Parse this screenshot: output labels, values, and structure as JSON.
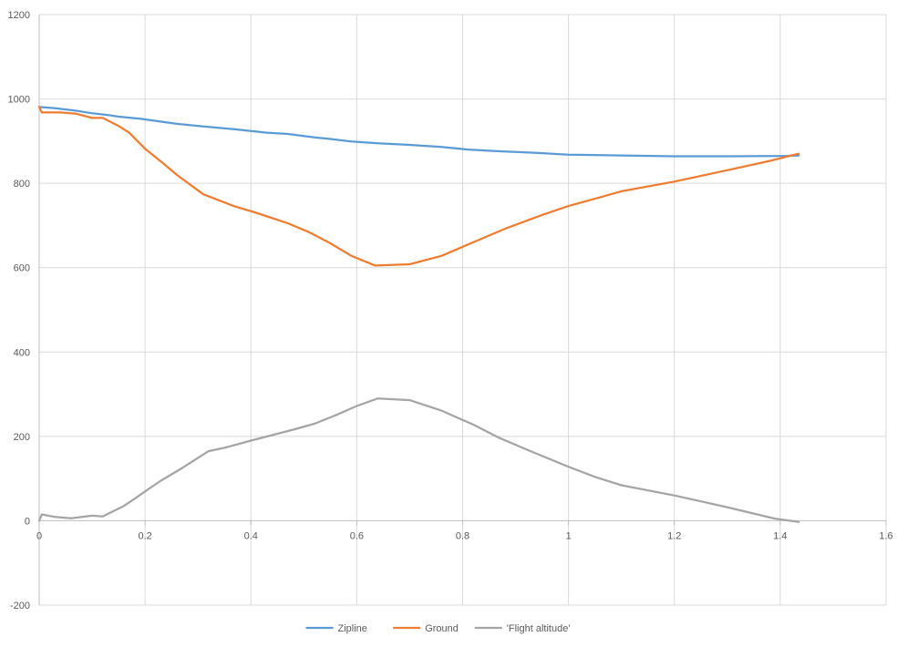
{
  "chart_data": {
    "type": "scatter",
    "title": "",
    "xlabel": "",
    "ylabel": "",
    "xlim": [
      0,
      1.6
    ],
    "ylim": [
      -200,
      1200
    ],
    "xticks": [
      "0",
      "0.2",
      "0.4",
      "0.6",
      "0.8",
      "1",
      "1.2",
      "1.4",
      "1.6"
    ],
    "yticks": [
      "-200",
      "0",
      "200",
      "400",
      "600",
      "800",
      "1000",
      "1200"
    ],
    "grid": true,
    "legend_position": "bottom",
    "series": [
      {
        "name": "Zipline",
        "color": "#5B9BD5",
        "points": [
          [
            0,
            981
          ],
          [
            0.03,
            978
          ],
          [
            0.07,
            972
          ],
          [
            0.1,
            966
          ],
          [
            0.13,
            962
          ],
          [
            0.15,
            958
          ],
          [
            0.19,
            953
          ],
          [
            0.22,
            948
          ],
          [
            0.26,
            941
          ],
          [
            0.31,
            935
          ],
          [
            0.37,
            928
          ],
          [
            0.43,
            920
          ],
          [
            0.47,
            917
          ],
          [
            0.52,
            909
          ],
          [
            0.55,
            905
          ],
          [
            0.59,
            899
          ],
          [
            0.64,
            895
          ],
          [
            0.7,
            891
          ],
          [
            0.76,
            886
          ],
          [
            0.81,
            880
          ],
          [
            0.87,
            876
          ],
          [
            0.94,
            872
          ],
          [
            1,
            868
          ],
          [
            1.1,
            866
          ],
          [
            1.2,
            864
          ],
          [
            1.3,
            864
          ],
          [
            1.41,
            865
          ],
          [
            1.435,
            866
          ]
        ]
      },
      {
        "name": "Ground",
        "color": "#ED7D31",
        "points": [
          [
            0,
            981
          ],
          [
            0.005,
            968
          ],
          [
            0.04,
            968
          ],
          [
            0.07,
            965
          ],
          [
            0.1,
            955
          ],
          [
            0.12,
            955
          ],
          [
            0.15,
            936
          ],
          [
            0.17,
            920
          ],
          [
            0.2,
            882
          ],
          [
            0.23,
            852
          ],
          [
            0.26,
            820
          ],
          [
            0.31,
            774
          ],
          [
            0.37,
            745
          ],
          [
            0.41,
            730
          ],
          [
            0.47,
            705
          ],
          [
            0.51,
            684
          ],
          [
            0.55,
            658
          ],
          [
            0.59,
            628
          ],
          [
            0.635,
            605
          ],
          [
            0.7,
            608
          ],
          [
            0.76,
            628
          ],
          [
            0.82,
            660
          ],
          [
            0.88,
            692
          ],
          [
            0.95,
            725
          ],
          [
            1,
            746
          ],
          [
            1.04,
            760
          ],
          [
            1.1,
            781
          ],
          [
            1.2,
            804
          ],
          [
            1.3,
            831
          ],
          [
            1.38,
            853
          ],
          [
            1.435,
            870
          ]
        ]
      },
      {
        "name": "'Flight altitude'",
        "color": "#A5A5A5",
        "points": [
          [
            0,
            0
          ],
          [
            0.005,
            15
          ],
          [
            0.03,
            9
          ],
          [
            0.06,
            6
          ],
          [
            0.1,
            12
          ],
          [
            0.12,
            10
          ],
          [
            0.16,
            35
          ],
          [
            0.18,
            52
          ],
          [
            0.21,
            78
          ],
          [
            0.23,
            95
          ],
          [
            0.27,
            125
          ],
          [
            0.32,
            165
          ],
          [
            0.35,
            173
          ],
          [
            0.4,
            190
          ],
          [
            0.44,
            203
          ],
          [
            0.48,
            216
          ],
          [
            0.52,
            230
          ],
          [
            0.56,
            250
          ],
          [
            0.6,
            272
          ],
          [
            0.64,
            290
          ],
          [
            0.7,
            286
          ],
          [
            0.76,
            261
          ],
          [
            0.82,
            228
          ],
          [
            0.87,
            196
          ],
          [
            0.93,
            164
          ],
          [
            1,
            128
          ],
          [
            1.05,
            104
          ],
          [
            1.1,
            84
          ],
          [
            1.2,
            60
          ],
          [
            1.3,
            32
          ],
          [
            1.39,
            5
          ],
          [
            1.435,
            -3
          ]
        ]
      }
    ]
  }
}
